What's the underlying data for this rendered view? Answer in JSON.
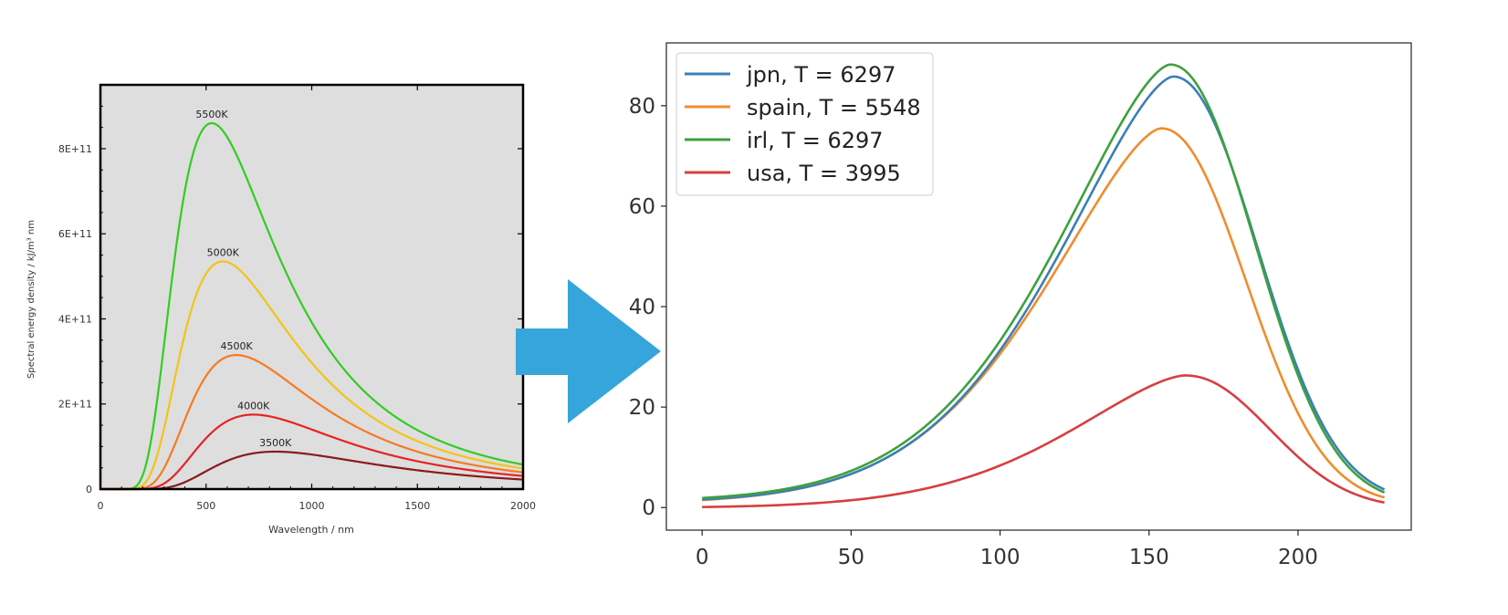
{
  "colors": {
    "arrow": "#35A5DB",
    "left_background": "#DEDEDE",
    "jpn": "#3B7FB7",
    "spain": "#F08C2C",
    "irl": "#3DA13D",
    "usa": "#D63F3F"
  },
  "arrow_icon": "right-arrow-icon",
  "chart_data": [
    {
      "type": "line",
      "title": "",
      "xlabel": "Wavelength / nm",
      "ylabel": "Spectral energy density / kJ/m³ nm",
      "xlim": [
        0,
        2000
      ],
      "ylim": [
        0,
        950000000000
      ],
      "x_ticks": [
        0,
        500,
        1000,
        1500,
        2000
      ],
      "x_tick_labels": [
        "0",
        "500",
        "1000",
        "1500",
        "2000"
      ],
      "y_ticks": [
        0,
        200000000000,
        400000000000,
        600000000000,
        800000000000
      ],
      "y_tick_labels": [
        "0",
        "2E+11",
        "4E+11",
        "6E+11",
        "8E+11"
      ],
      "grid": false,
      "series": [
        {
          "name": "5500K",
          "label": "5500K",
          "temperature": 5500,
          "color": "#33CC22",
          "peak_value": 860000000000
        },
        {
          "name": "5000K",
          "label": "5000K",
          "temperature": 5000,
          "color": "#F2C417",
          "peak_value": 535000000000
        },
        {
          "name": "4500K",
          "label": "4500K",
          "temperature": 4500,
          "color": "#F57B22",
          "peak_value": 315000000000
        },
        {
          "name": "4000K",
          "label": "4000K",
          "temperature": 4000,
          "color": "#E52424",
          "peak_value": 175000000000
        },
        {
          "name": "3500K",
          "label": "3500K",
          "temperature": 3500,
          "color": "#8B1A1A",
          "peak_value": 88000000000
        }
      ]
    },
    {
      "type": "line",
      "title": "",
      "xlabel": "",
      "ylabel": "",
      "xlim": [
        -12,
        238
      ],
      "ylim": [
        -4.5,
        92.5
      ],
      "x_ticks": [
        0,
        50,
        100,
        150,
        200
      ],
      "x_tick_labels": [
        "0",
        "50",
        "100",
        "150",
        "200"
      ],
      "y_ticks": [
        0,
        20,
        40,
        60,
        80
      ],
      "y_tick_labels": [
        "0",
        "20",
        "40",
        "60",
        "80"
      ],
      "grid": false,
      "legend": "top-left",
      "x_end": 229,
      "series": [
        {
          "name": "jpn",
          "label": "jpn, T = 6297",
          "color": "#3B7FB7",
          "peak_x": 158,
          "peak_y": 85.8,
          "start_y": 1.6,
          "end_y": 3.6
        },
        {
          "name": "spain",
          "label": "spain, T = 5548",
          "color": "#F08C2C",
          "peak_x": 154,
          "peak_y": 75.5,
          "start_y": 1.5,
          "end_y": 2.0
        },
        {
          "name": "irl",
          "label": "irl, T = 6297",
          "color": "#3DA13D",
          "peak_x": 157,
          "peak_y": 88.2,
          "start_y": 1.9,
          "end_y": 3.0
        },
        {
          "name": "usa",
          "label": "usa, T = 3995",
          "color": "#D63F3F",
          "peak_x": 162,
          "peak_y": 26.3,
          "start_y": 0.1,
          "end_y": 1.0
        }
      ]
    }
  ]
}
